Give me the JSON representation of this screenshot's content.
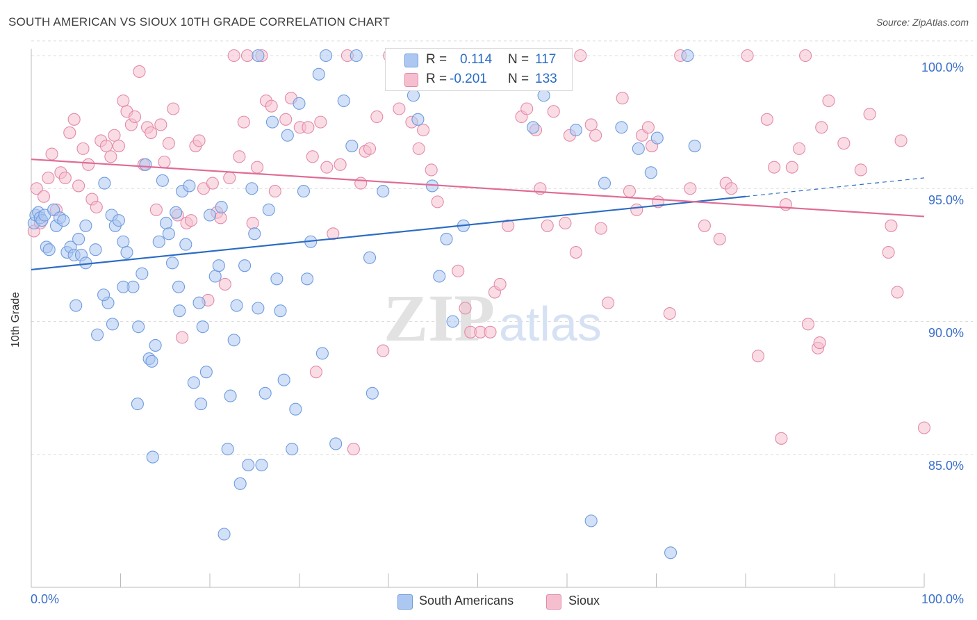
{
  "title": "SOUTH AMERICAN VS SIOUX 10TH GRADE CORRELATION CHART",
  "source": "Source: ZipAtlas.com",
  "watermark": {
    "zip": "ZIP",
    "atlas": "atlas"
  },
  "colors": {
    "blue_fill": "#adc8f0",
    "blue_stroke": "#6f9be0",
    "blue_line": "#2b6cc4",
    "pink_fill": "#f6bfd0",
    "pink_stroke": "#e38aa8",
    "pink_line": "#e06b95",
    "axis_text": "#3b6fc9"
  },
  "legend": {
    "row1": {
      "r_label": "R =",
      "r_value": "0.114",
      "n_label": "N =",
      "n_value": "117"
    },
    "row2": {
      "r_label": "R =",
      "r_value": "-0.201",
      "n_label": "N =",
      "n_value": "133"
    }
  },
  "bottom_legend": {
    "series1": "South Americans",
    "series2": "Sioux"
  },
  "axes": {
    "ylabel": "10th Grade",
    "x_min_label": "0.0%",
    "x_max_label": "100.0%",
    "y_ticks": [
      "100.0%",
      "95.0%",
      "90.0%",
      "85.0%"
    ]
  },
  "chart_data": {
    "type": "scatter",
    "title": "SOUTH AMERICAN VS SIOUX 10TH GRADE CORRELATION CHART",
    "xlabel": "",
    "ylabel": "10th Grade",
    "xlim": [
      0,
      100
    ],
    "ylim": [
      80.5,
      101.0
    ],
    "y_ticks": [
      85,
      90,
      95,
      100
    ],
    "grid": true,
    "legend_position": "top-center",
    "series": [
      {
        "name": "South Americans",
        "r": 0.114,
        "n": 117,
        "trend": {
          "x0": 0,
          "y0": 91.95,
          "x1": 80,
          "y1": 94.7,
          "dashed_to_x": 100,
          "dashed_to_y": 95.4
        },
        "points": [
          [
            0.3,
            93.7
          ],
          [
            0.5,
            94.0
          ],
          [
            0.8,
            94.1
          ],
          [
            1.0,
            93.9
          ],
          [
            1.2,
            93.8
          ],
          [
            1.5,
            94.0
          ],
          [
            1.7,
            92.8
          ],
          [
            2.0,
            92.7
          ],
          [
            2.5,
            94.2
          ],
          [
            2.8,
            93.6
          ],
          [
            3.2,
            93.9
          ],
          [
            3.6,
            93.8
          ],
          [
            4.0,
            92.6
          ],
          [
            4.4,
            92.8
          ],
          [
            4.8,
            92.5
          ],
          [
            5.3,
            93.1
          ],
          [
            5.6,
            92.5
          ],
          [
            6.1,
            93.6
          ],
          [
            7.2,
            92.7
          ],
          [
            8.2,
            95.2
          ],
          [
            8.6,
            90.7
          ],
          [
            9.0,
            94.0
          ],
          [
            9.4,
            93.6
          ],
          [
            9.8,
            93.8
          ],
          [
            10.3,
            93.0
          ],
          [
            10.7,
            92.6
          ],
          [
            11.4,
            91.3
          ],
          [
            12.0,
            89.8
          ],
          [
            12.4,
            91.8
          ],
          [
            12.8,
            95.9
          ],
          [
            13.2,
            88.6
          ],
          [
            13.5,
            88.5
          ],
          [
            13.9,
            89.1
          ],
          [
            14.3,
            93.0
          ],
          [
            14.7,
            95.3
          ],
          [
            15.1,
            93.7
          ],
          [
            15.4,
            93.3
          ],
          [
            15.8,
            92.2
          ],
          [
            16.2,
            94.1
          ],
          [
            16.5,
            91.3
          ],
          [
            16.9,
            94.9
          ],
          [
            17.3,
            92.9
          ],
          [
            17.7,
            95.1
          ],
          [
            18.2,
            87.7
          ],
          [
            18.8,
            90.7
          ],
          [
            19.2,
            89.8
          ],
          [
            19.6,
            88.1
          ],
          [
            20.0,
            94.0
          ],
          [
            20.6,
            91.7
          ],
          [
            21.0,
            92.1
          ],
          [
            21.3,
            94.3
          ],
          [
            21.6,
            82.0
          ],
          [
            22.0,
            85.2
          ],
          [
            22.3,
            87.2
          ],
          [
            22.7,
            89.3
          ],
          [
            23.0,
            90.6
          ],
          [
            23.4,
            83.9
          ],
          [
            23.9,
            92.1
          ],
          [
            24.3,
            84.6
          ],
          [
            24.7,
            95.0
          ],
          [
            25.0,
            93.3
          ],
          [
            25.4,
            100.0
          ],
          [
            25.8,
            84.6
          ],
          [
            26.2,
            87.3
          ],
          [
            26.6,
            94.2
          ],
          [
            27.0,
            97.5
          ],
          [
            27.5,
            91.6
          ],
          [
            27.9,
            90.4
          ],
          [
            28.3,
            87.8
          ],
          [
            28.7,
            97.0
          ],
          [
            29.2,
            85.2
          ],
          [
            29.6,
            86.7
          ],
          [
            30.0,
            98.2
          ],
          [
            30.5,
            94.9
          ],
          [
            30.9,
            91.6
          ],
          [
            31.3,
            93.0
          ],
          [
            32.2,
            99.3
          ],
          [
            32.6,
            88.8
          ],
          [
            33.0,
            100.0
          ],
          [
            34.1,
            85.4
          ],
          [
            35.0,
            98.3
          ],
          [
            35.9,
            96.6
          ],
          [
            36.4,
            100.0
          ],
          [
            37.9,
            92.4
          ],
          [
            38.2,
            87.3
          ],
          [
            39.4,
            94.9
          ],
          [
            40.8,
            100.0
          ],
          [
            42.0,
            100.0
          ],
          [
            42.8,
            98.5
          ],
          [
            43.3,
            97.6
          ],
          [
            44.9,
            95.1
          ],
          [
            45.7,
            91.7
          ],
          [
            46.5,
            93.1
          ],
          [
            47.2,
            90.0
          ],
          [
            48.4,
            93.6
          ],
          [
            50.1,
            99.6
          ],
          [
            53.1,
            100.0
          ],
          [
            55.0,
            99.9
          ],
          [
            56.2,
            97.3
          ],
          [
            57.4,
            98.5
          ],
          [
            61.0,
            97.2
          ],
          [
            62.7,
            82.5
          ],
          [
            64.2,
            95.2
          ],
          [
            66.1,
            97.3
          ],
          [
            68.0,
            96.5
          ],
          [
            69.4,
            95.6
          ],
          [
            70.1,
            96.9
          ],
          [
            71.6,
            81.3
          ],
          [
            73.5,
            100.0
          ],
          [
            74.3,
            96.6
          ],
          [
            8.1,
            91.0
          ],
          [
            9.1,
            89.9
          ],
          [
            11.9,
            86.9
          ],
          [
            13.6,
            84.9
          ],
          [
            10.3,
            91.3
          ],
          [
            6.1,
            92.2
          ],
          [
            7.4,
            89.5
          ],
          [
            5.0,
            90.6
          ],
          [
            16.6,
            90.4
          ],
          [
            19.0,
            86.9
          ],
          [
            25.4,
            90.5
          ]
        ]
      },
      {
        "name": "Sioux",
        "r": -0.201,
        "n": 133,
        "trend": {
          "x0": 0,
          "y0": 96.1,
          "x1": 100,
          "y1": 93.95
        },
        "points": [
          [
            0.3,
            93.4
          ],
          [
            0.6,
            95.0
          ],
          [
            1.0,
            93.7
          ],
          [
            1.4,
            94.7
          ],
          [
            1.9,
            95.4
          ],
          [
            2.3,
            96.3
          ],
          [
            2.8,
            94.2
          ],
          [
            3.3,
            95.6
          ],
          [
            3.8,
            95.4
          ],
          [
            4.3,
            97.1
          ],
          [
            4.8,
            97.6
          ],
          [
            5.3,
            95.1
          ],
          [
            5.8,
            96.5
          ],
          [
            6.4,
            95.9
          ],
          [
            6.8,
            94.6
          ],
          [
            7.3,
            94.3
          ],
          [
            7.8,
            96.8
          ],
          [
            8.4,
            96.6
          ],
          [
            8.9,
            96.2
          ],
          [
            9.3,
            97.0
          ],
          [
            9.8,
            96.6
          ],
          [
            10.3,
            98.3
          ],
          [
            10.7,
            97.9
          ],
          [
            11.2,
            97.4
          ],
          [
            11.6,
            97.7
          ],
          [
            12.1,
            99.4
          ],
          [
            12.6,
            95.9
          ],
          [
            13.0,
            97.3
          ],
          [
            13.4,
            97.1
          ],
          [
            14.0,
            94.2
          ],
          [
            14.5,
            97.4
          ],
          [
            14.9,
            96.0
          ],
          [
            15.4,
            96.7
          ],
          [
            15.9,
            98.0
          ],
          [
            16.4,
            94.0
          ],
          [
            16.9,
            89.4
          ],
          [
            17.4,
            93.7
          ],
          [
            17.9,
            93.8
          ],
          [
            18.4,
            96.6
          ],
          [
            18.8,
            96.8
          ],
          [
            19.3,
            95.0
          ],
          [
            19.8,
            90.8
          ],
          [
            20.3,
            95.2
          ],
          [
            20.8,
            94.1
          ],
          [
            21.2,
            93.9
          ],
          [
            21.7,
            91.4
          ],
          [
            22.2,
            95.4
          ],
          [
            22.7,
            100.0
          ],
          [
            23.3,
            96.2
          ],
          [
            23.8,
            97.5
          ],
          [
            24.2,
            100.0
          ],
          [
            24.8,
            93.7
          ],
          [
            25.3,
            95.8
          ],
          [
            25.8,
            100.0
          ],
          [
            26.3,
            98.3
          ],
          [
            26.9,
            98.1
          ],
          [
            27.3,
            94.9
          ],
          [
            28.5,
            97.6
          ],
          [
            29.1,
            98.4
          ],
          [
            30.1,
            97.3
          ],
          [
            31.0,
            97.3
          ],
          [
            31.5,
            96.2
          ],
          [
            31.9,
            88.1
          ],
          [
            32.4,
            97.5
          ],
          [
            33.1,
            95.8
          ],
          [
            33.8,
            93.3
          ],
          [
            34.6,
            95.9
          ],
          [
            35.4,
            100.0
          ],
          [
            36.1,
            85.2
          ],
          [
            36.9,
            95.2
          ],
          [
            37.4,
            96.4
          ],
          [
            37.9,
            96.5
          ],
          [
            38.7,
            97.7
          ],
          [
            39.4,
            88.9
          ],
          [
            40.1,
            100.0
          ],
          [
            41.2,
            98.0
          ],
          [
            42.6,
            97.5
          ],
          [
            43.4,
            96.5
          ],
          [
            43.9,
            97.2
          ],
          [
            44.8,
            95.7
          ],
          [
            45.5,
            94.5
          ],
          [
            46.9,
            100.0
          ],
          [
            47.8,
            91.9
          ],
          [
            48.6,
            90.5
          ],
          [
            49.2,
            89.6
          ],
          [
            50.3,
            89.6
          ],
          [
            51.4,
            89.6
          ],
          [
            51.9,
            91.1
          ],
          [
            52.5,
            91.4
          ],
          [
            53.4,
            93.6
          ],
          [
            54.9,
            97.7
          ],
          [
            55.5,
            98.0
          ],
          [
            56.5,
            97.2
          ],
          [
            57.0,
            95.0
          ],
          [
            57.8,
            93.6
          ],
          [
            58.5,
            97.9
          ],
          [
            59.8,
            93.7
          ],
          [
            60.3,
            97.0
          ],
          [
            61.0,
            92.6
          ],
          [
            61.5,
            100.0
          ],
          [
            62.7,
            97.4
          ],
          [
            63.2,
            97.0
          ],
          [
            63.8,
            93.5
          ],
          [
            64.6,
            90.7
          ],
          [
            66.2,
            98.4
          ],
          [
            67.0,
            94.9
          ],
          [
            67.8,
            94.2
          ],
          [
            68.4,
            97.0
          ],
          [
            69.1,
            97.3
          ],
          [
            69.5,
            96.6
          ],
          [
            70.2,
            94.5
          ],
          [
            71.5,
            90.3
          ],
          [
            72.7,
            100.0
          ],
          [
            73.8,
            95.0
          ],
          [
            75.4,
            93.6
          ],
          [
            77.1,
            93.1
          ],
          [
            77.8,
            95.2
          ],
          [
            78.4,
            95.0
          ],
          [
            80.2,
            100.0
          ],
          [
            81.4,
            88.7
          ],
          [
            82.4,
            97.6
          ],
          [
            83.2,
            95.8
          ],
          [
            84.0,
            85.6
          ],
          [
            84.5,
            94.4
          ],
          [
            85.2,
            95.8
          ],
          [
            86.0,
            96.5
          ],
          [
            86.7,
            100.0
          ],
          [
            87.0,
            89.9
          ],
          [
            88.1,
            89.0
          ],
          [
            88.3,
            89.2
          ],
          [
            88.5,
            97.3
          ],
          [
            89.3,
            98.3
          ],
          [
            91.0,
            96.7
          ],
          [
            92.9,
            95.7
          ],
          [
            93.9,
            97.8
          ],
          [
            96.0,
            92.6
          ],
          [
            96.3,
            93.6
          ],
          [
            97.0,
            91.1
          ],
          [
            97.4,
            96.8
          ],
          [
            100.0,
            86.0
          ]
        ]
      }
    ]
  }
}
